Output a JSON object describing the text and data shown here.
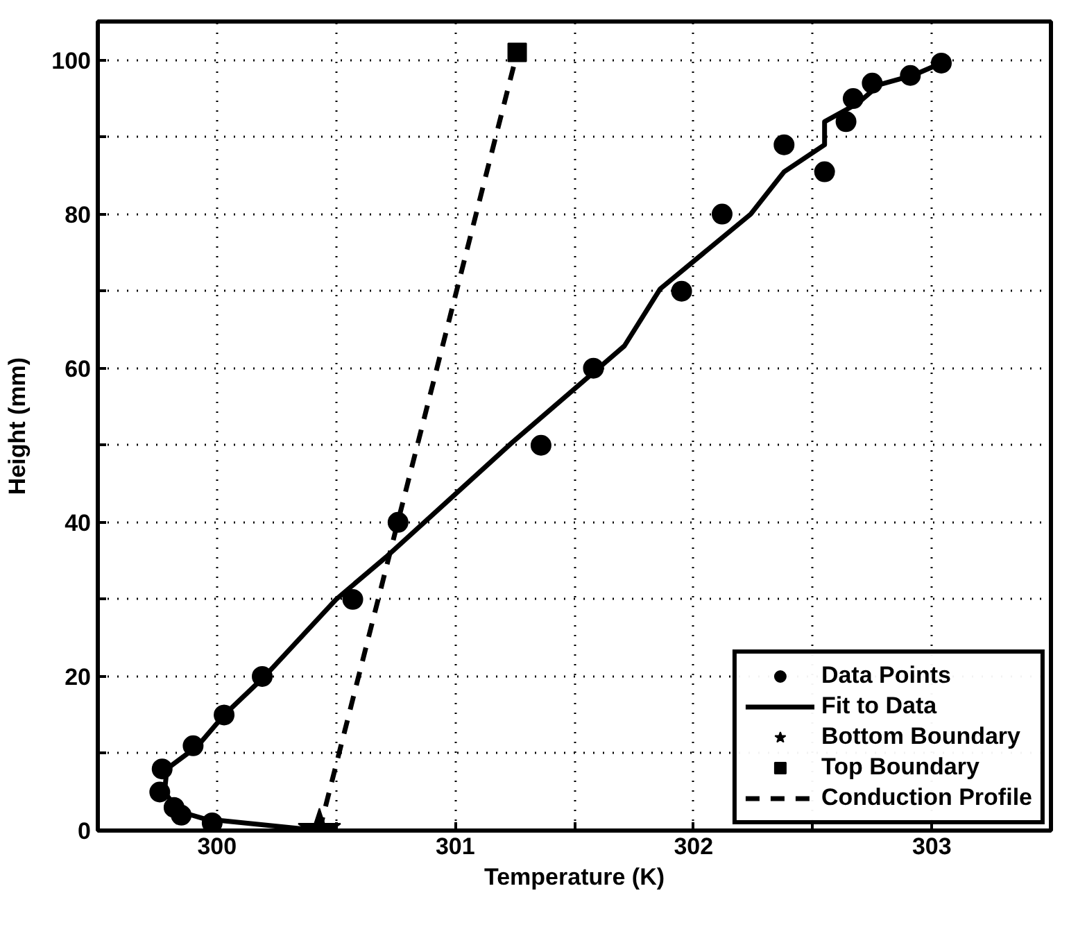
{
  "chart_data": {
    "type": "scatter",
    "xlabel": "Temperature (K)",
    "ylabel": "Height (mm)",
    "xlim": [
      299.5,
      303.5
    ],
    "ylim": [
      0,
      105
    ],
    "xticks": [
      300,
      {
        "value": 300.5,
        "label": null
      },
      301,
      {
        "value": 301.5,
        "label": null
      },
      302,
      {
        "value": 302.5,
        "label": null
      },
      303
    ],
    "yticks": [
      0,
      {
        "value": 10,
        "label": null
      },
      20,
      {
        "value": 30,
        "label": null
      },
      40,
      {
        "value": 50,
        "label": null
      },
      60,
      {
        "value": 70,
        "label": null
      },
      80,
      {
        "value": 90,
        "label": null
      },
      100
    ],
    "grid": true,
    "legend": "bottom right",
    "series": [
      {
        "name": "Data Points",
        "marker": "circle",
        "color": "#000000",
        "x": [
          299.98,
          299.85,
          299.82,
          299.76,
          299.77,
          299.9,
          300.03,
          300.19,
          300.57,
          300.76,
          301.36,
          301.58,
          301.95,
          302.12,
          302.55,
          302.38,
          302.64,
          302.67,
          302.75,
          302.91,
          303.04
        ],
        "values": [
          1,
          2,
          3,
          5,
          8,
          11,
          15,
          20,
          30,
          40,
          50,
          60,
          70,
          80,
          85.5,
          89,
          92,
          95,
          97,
          98,
          99.6
        ]
      },
      {
        "name": "Fit to Data",
        "type": "line",
        "line_style": "solid",
        "color": "#000000",
        "x": [
          300.4,
          299.95,
          299.84,
          299.78,
          299.79,
          299.92,
          300.03,
          300.2,
          300.5,
          300.71,
          301.24,
          301.71,
          301.86,
          302.24,
          302.38,
          302.55,
          302.55,
          302.69,
          302.78,
          302.92,
          303.04
        ],
        "values": [
          0.1,
          1.5,
          2.5,
          5,
          8,
          11,
          15,
          20,
          30,
          35.5,
          50.4,
          62.9,
          70.3,
          80,
          85.5,
          89,
          92,
          94.4,
          96.8,
          98,
          99.6
        ]
      },
      {
        "name": "Bottom Boundary",
        "marker": "star",
        "color": "#000000",
        "x": [
          300.43
        ],
        "values": [
          0
        ]
      },
      {
        "name": "Top Boundary",
        "marker": "square",
        "color": "#000000",
        "x": [
          301.26
        ],
        "values": [
          101
        ]
      },
      {
        "name": "Conduction Profile",
        "type": "line",
        "line_style": "dashed",
        "color": "#000000",
        "x": [
          300.43,
          301.26
        ],
        "values": [
          0,
          101
        ]
      }
    ]
  }
}
